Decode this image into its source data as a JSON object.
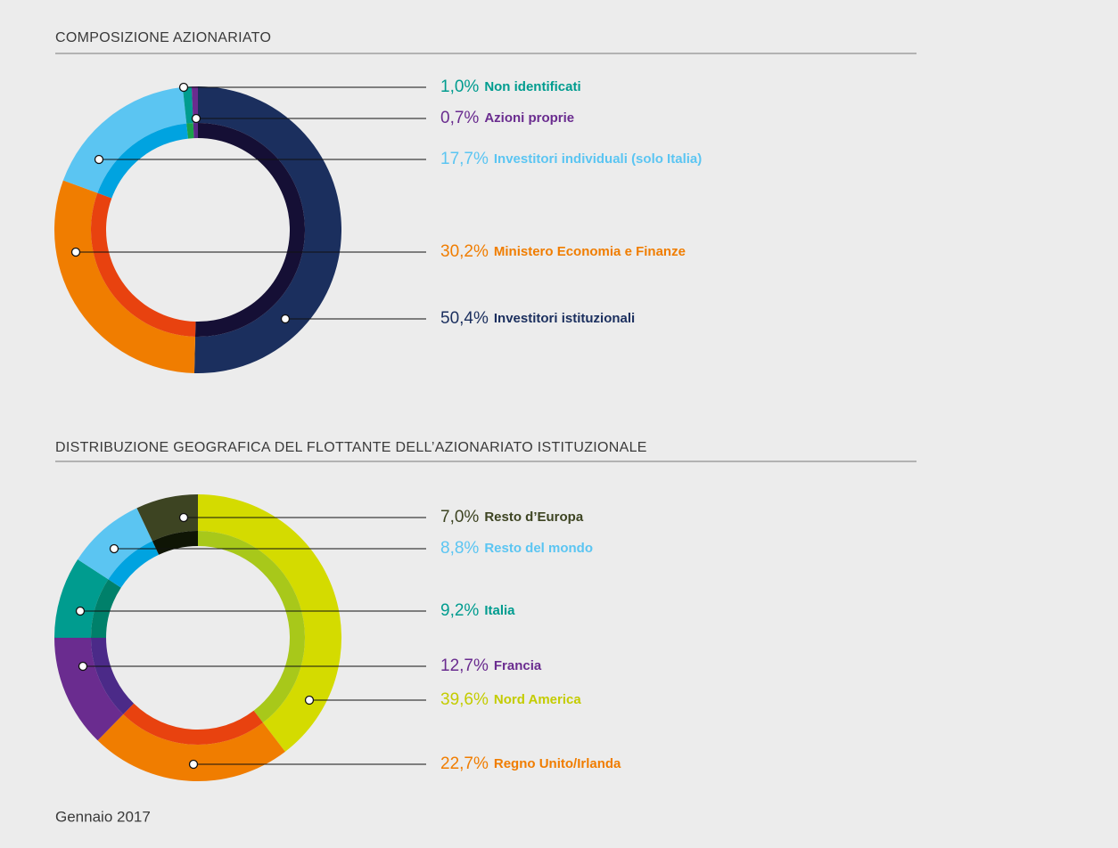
{
  "chart_data": [
    {
      "type": "pie",
      "title": "COMPOSIZIONE AZIONARIATO",
      "categories": [
        "Investitori istituzionali",
        "Ministero Economia e Finanze",
        "Investitori individuali (solo Italia)",
        "Non identificati",
        "Azioni proprie"
      ],
      "values": [
        50.4,
        30.2,
        17.7,
        1.0,
        0.7
      ],
      "value_labels": [
        "50,4%",
        "30,2%",
        "17,7%",
        "1,0%",
        "0,7%"
      ],
      "colors": [
        "#1b2f5e",
        "#f07d00",
        "#5bc5f2",
        "#009c8f",
        "#6a2c8f"
      ],
      "inner_colors": [
        "#150f35",
        "#e8420f",
        "#00a3e0",
        "#1aa24a",
        "#5b2a86"
      ]
    },
    {
      "type": "pie",
      "title": "DISTRIBUZIONE GEOGRAFICA DEL FLOTTANTE DELL’AZIONARIATO ISTITUZIONALE",
      "categories": [
        "Nord America",
        "Regno Unito/Irlanda",
        "Francia",
        "Italia",
        "Resto del mondo",
        "Resto d’Europa"
      ],
      "values": [
        39.6,
        22.7,
        12.7,
        9.2,
        8.8,
        7.0
      ],
      "value_labels": [
        "39,6%",
        "22,7%",
        "12,7%",
        "9,2%",
        "8,8%",
        "7,0%"
      ],
      "colors": [
        "#d4db00",
        "#f07d00",
        "#6a2c8f",
        "#009c8f",
        "#5bc5f2",
        "#3d4422"
      ],
      "inner_colors": [
        "#a8c81a",
        "#e8420f",
        "#4b2a88",
        "#00806a",
        "#00a3e0",
        "#0f1505"
      ]
    }
  ],
  "footer": "Gennaio 2017"
}
